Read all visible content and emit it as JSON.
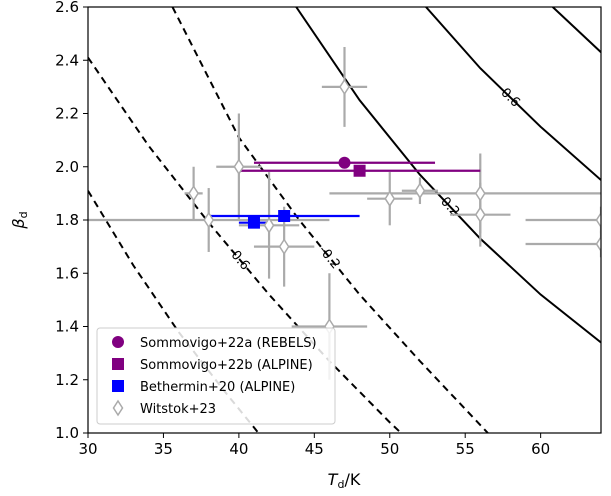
{
  "chart_data": {
    "type": "scatter",
    "title": "",
    "xlabel_main": "T",
    "xlabel_sub": "d",
    "xlabel_unit": "/K",
    "ylabel_main": "β",
    "ylabel_sub": "d",
    "xlim": [
      30,
      64
    ],
    "ylim": [
      1.0,
      2.6
    ],
    "xticks": [
      30,
      35,
      40,
      45,
      50,
      55,
      60
    ],
    "yticks": [
      1.0,
      1.2,
      1.4,
      1.6,
      1.8,
      2.0,
      2.2,
      2.4,
      2.6
    ],
    "xtick_labels": [
      "30",
      "35",
      "40",
      "45",
      "50",
      "55",
      "60"
    ],
    "ytick_labels": [
      "1.0",
      "1.2",
      "1.4",
      "1.6",
      "1.8",
      "2.0",
      "2.2",
      "2.4",
      "2.6"
    ],
    "grid": false,
    "legend_position": "lower-left",
    "contours": [
      {
        "label": "",
        "style": "dashed",
        "points": [
          [
            30,
            1.91
          ],
          [
            33,
            1.63
          ],
          [
            36,
            1.38
          ],
          [
            39,
            1.16
          ],
          [
            41.3,
            1.0
          ]
        ]
      },
      {
        "label": "-0.6",
        "style": "dashed",
        "points": [
          [
            30,
            2.41
          ],
          [
            34,
            2.08
          ],
          [
            38,
            1.79
          ],
          [
            42,
            1.52
          ],
          [
            46,
            1.27
          ],
          [
            50,
            1.04
          ],
          [
            51.5,
            0.96
          ]
        ]
      },
      {
        "label": "-0.2",
        "style": "dashed",
        "points": [
          [
            35.6,
            2.6
          ],
          [
            40,
            2.11
          ],
          [
            44,
            1.8
          ],
          [
            48,
            1.52
          ],
          [
            52,
            1.27
          ],
          [
            55.5,
            1.06
          ],
          [
            56.5,
            1.0
          ]
        ]
      },
      {
        "label": "0.2",
        "style": "solid",
        "points": [
          [
            43.8,
            2.6
          ],
          [
            48,
            2.25
          ],
          [
            52,
            1.97
          ],
          [
            56,
            1.73
          ],
          [
            60,
            1.52
          ],
          [
            64,
            1.34
          ]
        ]
      },
      {
        "label": "0.6",
        "style": "solid",
        "points": [
          [
            52.4,
            2.6
          ],
          [
            56,
            2.37
          ],
          [
            60,
            2.15
          ],
          [
            64,
            1.95
          ]
        ]
      },
      {
        "label": "",
        "style": "solid",
        "points": [
          [
            60.8,
            2.6
          ],
          [
            64,
            2.43
          ]
        ]
      }
    ],
    "series": [
      {
        "name": "Sommovigo+22a (REBELS)",
        "color": "#800080",
        "marker": "circle",
        "points": [
          {
            "x": 47.0,
            "y": 2.015,
            "xerr": [
              6.0,
              6.0
            ],
            "yerr": [
              0,
              0
            ]
          }
        ]
      },
      {
        "name": "Sommovigo+22b (ALPINE)",
        "color": "#800080",
        "marker": "square",
        "points": [
          {
            "x": 48.0,
            "y": 1.985,
            "xerr": [
              8.0,
              8.0
            ],
            "yerr": [
              0,
              0
            ]
          }
        ]
      },
      {
        "name": "Bethermin+20 (ALPINE)",
        "color": "#0000ff",
        "marker": "square",
        "points": [
          {
            "x": 43.0,
            "y": 1.815,
            "xerr": [
              5.0,
              5.0
            ],
            "yerr": [
              0,
              0
            ]
          },
          {
            "x": 41.0,
            "y": 1.79,
            "xerr": [
              1.0,
              1.0
            ],
            "yerr": [
              0,
              0
            ]
          }
        ]
      },
      {
        "name": "Witstok+23",
        "color": "#aaaaaa",
        "marker": "diamond",
        "points": [
          {
            "x": 47.0,
            "y": 2.3,
            "xerr": [
              1.5,
              1.5
            ],
            "yerr": [
              0.15,
              0.15
            ]
          },
          {
            "x": 40.0,
            "y": 2.0,
            "xerr": [
              1.5,
              1.5
            ],
            "yerr": [
              0.2,
              0.2
            ]
          },
          {
            "x": 37.0,
            "y": 1.9,
            "xerr": [
              0.6,
              0.6
            ],
            "yerr": [
              0.1,
              0.1
            ]
          },
          {
            "x": 38.0,
            "y": 1.8,
            "xerr": [
              8.0,
              8.0
            ],
            "yerr": [
              0.12,
              0.12
            ]
          },
          {
            "x": 42.0,
            "y": 1.78,
            "xerr": [
              2.0,
              2.0
            ],
            "yerr": [
              0.2,
              0.2
            ]
          },
          {
            "x": 43.0,
            "y": 1.7,
            "xerr": [
              2.0,
              2.0
            ],
            "yerr": [
              0.15,
              0.15
            ]
          },
          {
            "x": 46.0,
            "y": 1.4,
            "xerr": [
              2.5,
              2.5
            ],
            "yerr": [
              0.2,
              0.2
            ]
          },
          {
            "x": 50.0,
            "y": 1.88,
            "xerr": [
              1.5,
              1.5
            ],
            "yerr": [
              0.1,
              0.1
            ]
          },
          {
            "x": 52.0,
            "y": 1.91,
            "xerr": [
              1.2,
              1.2
            ],
            "yerr": [
              0.05,
              0.05
            ]
          },
          {
            "x": 56.0,
            "y": 1.9,
            "xerr": [
              10.0,
              10.0
            ],
            "yerr": [
              0.15,
              0.15
            ]
          },
          {
            "x": 56.0,
            "y": 1.82,
            "xerr": [
              2.0,
              2.0
            ],
            "yerr": [
              0.12,
              0.12
            ]
          },
          {
            "x": 64.0,
            "y": 1.8,
            "xerr": [
              5.0,
              5.0
            ],
            "yerr": [
              0.05,
              0.05
            ]
          },
          {
            "x": 64.0,
            "y": 1.71,
            "xerr": [
              5.0,
              5.0
            ],
            "yerr": [
              0.05,
              0.05
            ]
          }
        ]
      }
    ],
    "legend": [
      {
        "label": "Sommovigo+22a (REBELS)",
        "color": "#800080",
        "marker": "circle"
      },
      {
        "label": "Sommovigo+22b (ALPINE)",
        "color": "#800080",
        "marker": "square"
      },
      {
        "label": "Bethermin+20 (ALPINE)",
        "color": "#0000ff",
        "marker": "square"
      },
      {
        "label": "Witstok+23",
        "color": "#aaaaaa",
        "marker": "diamond"
      }
    ]
  }
}
